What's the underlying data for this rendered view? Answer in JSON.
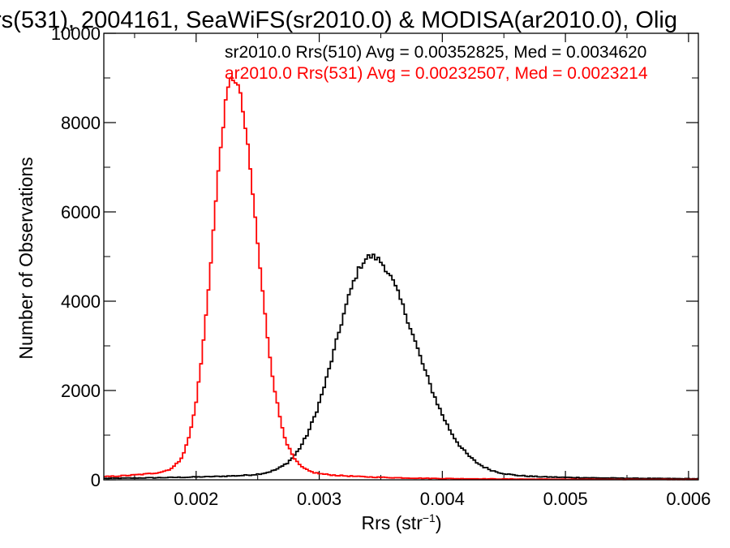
{
  "chart_data": {
    "type": "line",
    "title": "rs(531), 2004161, SeaWiFS(sr2010.0) & MODISA(ar2010.0), Olig",
    "xlabel_main": "Rrs (str",
    "xlabel_sup": "−1",
    "xlabel_close": ")",
    "ylabel": "Number of Observations",
    "xlim": [
      0.00125,
      0.00608
    ],
    "ylim": [
      0,
      10000
    ],
    "x_ticks": [
      0.002,
      0.003,
      0.004,
      0.005,
      0.006
    ],
    "x_tick_labels": [
      "0.002",
      "0.003",
      "0.004",
      "0.005",
      "0.006"
    ],
    "y_ticks": [
      0,
      2000,
      4000,
      6000,
      8000,
      10000
    ],
    "y_tick_labels": [
      "0",
      "2000",
      "4000",
      "6000",
      "8000",
      "10000"
    ],
    "bin_width": 2e-05,
    "grid": false,
    "series": [
      {
        "name": "sr2010.0 Rrs(510)",
        "legend_text": "sr2010.0 Rrs(510) Avg = 0.00352825, Med = 0.0034620",
        "color": "#000000",
        "center": 0.00342,
        "peak": 5000,
        "sigma_left": 0.00028,
        "sigma_right": 0.00036,
        "tail_width": 0.0009,
        "tail_amp": 220
      },
      {
        "name": "ar2010.0 Rrs(531)",
        "legend_text": "ar2010.0 Rrs(531) Avg = 0.00232507, Med = 0.0023214",
        "color": "#ff0000",
        "center": 0.0023,
        "peak": 9000,
        "sigma_left": 0.00016,
        "sigma_right": 0.00019,
        "tail_width": 0.00045,
        "tail_amp": 450
      }
    ]
  }
}
